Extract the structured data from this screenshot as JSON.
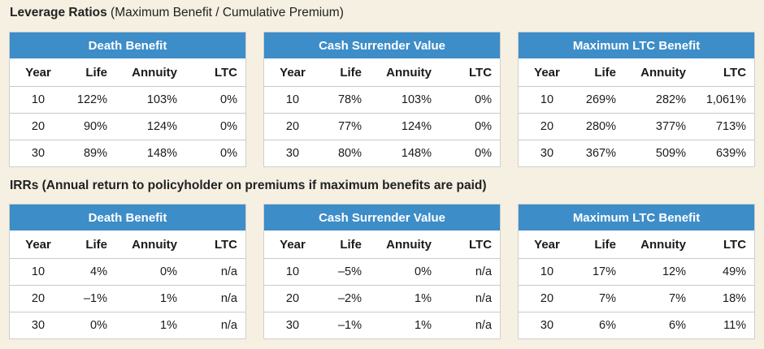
{
  "sections": [
    {
      "title_bold": "Leverage Ratios",
      "title_rest": " (Maximum Benefit / Cumulative Premium)",
      "tables": [
        {
          "title": "Death Benefit",
          "columns": [
            "Year",
            "Life",
            "Annuity",
            "LTC"
          ],
          "rows": [
            [
              "10",
              "122%",
              "103%",
              "0%"
            ],
            [
              "20",
              "90%",
              "124%",
              "0%"
            ],
            [
              "30",
              "89%",
              "148%",
              "0%"
            ]
          ]
        },
        {
          "title": "Cash Surrender Value",
          "columns": [
            "Year",
            "Life",
            "Annuity",
            "LTC"
          ],
          "rows": [
            [
              "10",
              "78%",
              "103%",
              "0%"
            ],
            [
              "20",
              "77%",
              "124%",
              "0%"
            ],
            [
              "30",
              "80%",
              "148%",
              "0%"
            ]
          ]
        },
        {
          "title": "Maximum LTC Benefit",
          "columns": [
            "Year",
            "Life",
            "Annuity",
            "LTC"
          ],
          "rows": [
            [
              "10",
              "269%",
              "282%",
              "1,061%"
            ],
            [
              "20",
              "280%",
              "377%",
              "713%"
            ],
            [
              "30",
              "367%",
              "509%",
              "639%"
            ]
          ]
        }
      ]
    },
    {
      "title_bold": "IRRs (Annual return to policyholder on premiums if maximum benefits are paid)",
      "title_rest": "",
      "tables": [
        {
          "title": "Death Benefit",
          "columns": [
            "Year",
            "Life",
            "Annuity",
            "LTC"
          ],
          "rows": [
            [
              "10",
              "4%",
              "0%",
              "n/a"
            ],
            [
              "20",
              "–1%",
              "1%",
              "n/a"
            ],
            [
              "30",
              "0%",
              "1%",
              "n/a"
            ]
          ]
        },
        {
          "title": "Cash Surrender Value",
          "columns": [
            "Year",
            "Life",
            "Annuity",
            "LTC"
          ],
          "rows": [
            [
              "10",
              "–5%",
              "0%",
              "n/a"
            ],
            [
              "20",
              "–2%",
              "1%",
              "n/a"
            ],
            [
              "30",
              "–1%",
              "1%",
              "n/a"
            ]
          ]
        },
        {
          "title": "Maximum LTC Benefit",
          "columns": [
            "Year",
            "Life",
            "Annuity",
            "LTC"
          ],
          "rows": [
            [
              "10",
              "17%",
              "12%",
              "49%"
            ],
            [
              "20",
              "7%",
              "7%",
              "18%"
            ],
            [
              "30",
              "6%",
              "6%",
              "11%"
            ]
          ]
        }
      ]
    }
  ]
}
